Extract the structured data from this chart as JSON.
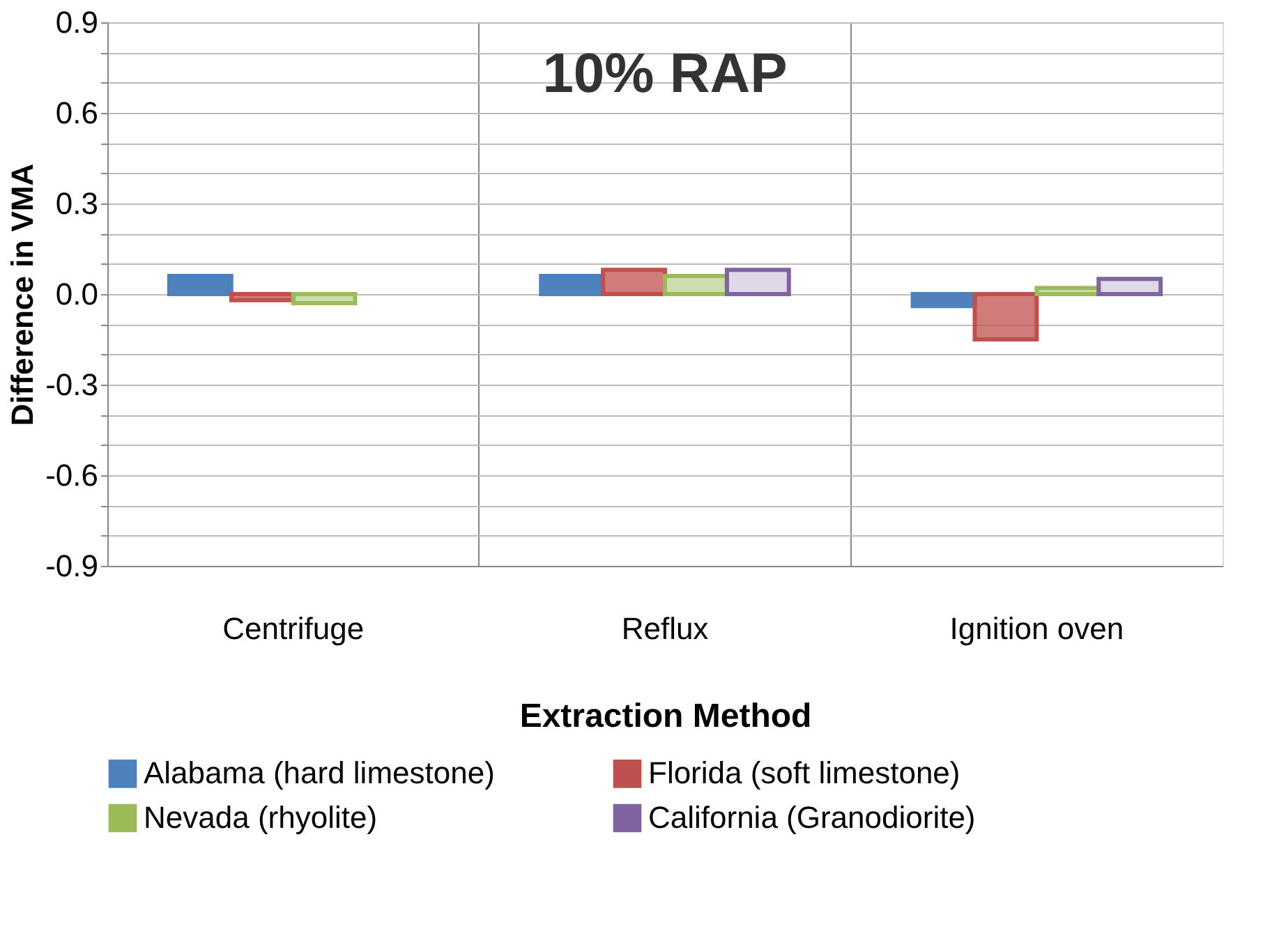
{
  "chart_data": {
    "type": "bar",
    "title": "10% RAP",
    "xlabel": "Extraction Method",
    "ylabel": "Difference in VMA",
    "categories": [
      "Centrifuge",
      "Reflux",
      "Ignition oven"
    ],
    "series": [
      {
        "name": "Alabama (hard limestone)",
        "color": "#4f81bd",
        "values": [
          0.06,
          0.06,
          -0.04
        ]
      },
      {
        "name": "Florida (soft limestone)",
        "color": "#c0504d",
        "values": [
          -0.02,
          0.08,
          -0.15
        ]
      },
      {
        "name": "Nevada (rhyolite)",
        "color": "#9bbb59",
        "values": [
          -0.03,
          0.06,
          0.02
        ]
      },
      {
        "name": "California (Granodiorite)",
        "color": "#8064a2",
        "values": [
          null,
          0.08,
          0.05
        ]
      }
    ],
    "ylim": [
      -0.9,
      0.9
    ],
    "yticks": [
      -0.9,
      {
        "value": -0.8,
        "label": null
      },
      {
        "value": -0.7,
        "label": null
      },
      -0.6,
      {
        "value": -0.5,
        "label": null
      },
      {
        "value": -0.4,
        "label": null
      },
      -0.3,
      {
        "value": -0.2,
        "label": null
      },
      {
        "value": -0.1,
        "label": null
      },
      {
        "value": 0,
        "label": "0.0"
      },
      {
        "value": 0.1,
        "label": null
      },
      {
        "value": 0.2,
        "label": null
      },
      0.3,
      {
        "value": 0.4,
        "label": null
      },
      {
        "value": 0.5,
        "label": null
      },
      0.6,
      {
        "value": 0.7,
        "label": null
      },
      {
        "value": 0.8,
        "label": null
      },
      0.9
    ],
    "grid": true,
    "legend": "bottom"
  }
}
